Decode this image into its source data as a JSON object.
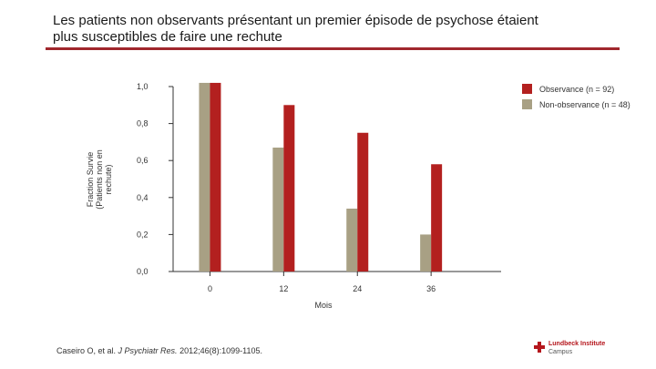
{
  "slide": {
    "title_line1": "Les patients non observants présentant un premier épisode de psychose étaient",
    "title_line2": "plus susceptibles de faire une rechute",
    "citation_prefix": "Caseiro O, et al. ",
    "citation_journal": "J Psychiatr Res.",
    "citation_suffix": " 2012;46(8):1099-1105.",
    "logo_name": "Lundbeck Institute",
    "logo_sub": "Campus"
  },
  "colors": {
    "accent": "#a0272d",
    "observance": "#b3201f",
    "non_observance": "#a8a084"
  },
  "chart_data": {
    "type": "bar",
    "xlabel": "Mois",
    "ylabel_lines": [
      "Fraction Survie",
      "(Patients non en",
      "rechute)"
    ],
    "categories": [
      "0",
      "12",
      "24",
      "36"
    ],
    "ylim": [
      0,
      1.0
    ],
    "yticks": [
      "0,0",
      "0,2",
      "0,4",
      "0,6",
      "0,8",
      "1,0"
    ],
    "ytick_values": [
      0,
      0.2,
      0.4,
      0.6,
      0.8,
      1.0
    ],
    "legend_position": "top-right",
    "grid": false,
    "series": [
      {
        "name": "Non-observance (n = 48)",
        "color": "#a8a084",
        "values": [
          1.02,
          0.67,
          0.34,
          0.2
        ]
      },
      {
        "name": "Observance (n = 92)",
        "color": "#b3201f",
        "values": [
          1.02,
          0.9,
          0.75,
          0.58
        ]
      }
    ],
    "legend_order": [
      "Observance (n = 92)",
      "Non-observance (n = 48)"
    ]
  }
}
